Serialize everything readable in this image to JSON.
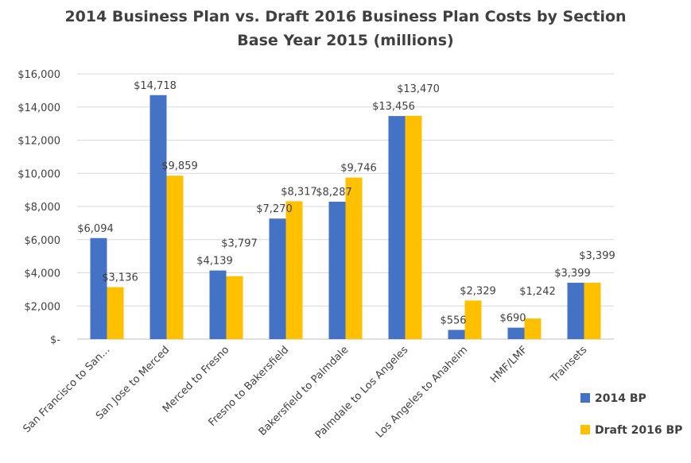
{
  "chart_data": {
    "type": "bar",
    "title": "2014 Business Plan vs. Draft 2016 Business Plan Costs by Section",
    "subtitle": "Base Year 2015 (millions)",
    "xlabel": "",
    "ylabel": "",
    "ylim": [
      0,
      16000
    ],
    "yticks": [
      0,
      2000,
      4000,
      6000,
      8000,
      10000,
      12000,
      14000,
      16000
    ],
    "ytick_labels": [
      "$-",
      "$2,000",
      "$4,000",
      "$6,000",
      "$8,000",
      "$10,000",
      "$12,000",
      "$14,000",
      "$16,000"
    ],
    "grid": true,
    "legend_position": "bottom-right",
    "categories": [
      "San Francisco to San...",
      "San Jose to Merced",
      "Merced to Fresno",
      "Fresno to Bakersfield",
      "Bakersfield to Palmdale",
      "Palmdale to Los Angeles",
      "Los Angeles to Anaheim",
      "HMF/LMF",
      "Trainsets"
    ],
    "series": [
      {
        "name": "2014 BP",
        "color": "#4472C4",
        "values": [
          6094,
          14718,
          4139,
          7270,
          8287,
          13456,
          556,
          690,
          3399
        ],
        "labels": [
          "$6,094",
          "$14,718",
          "$4,139",
          "$7,270",
          "$8,287",
          "$13,456",
          "$556",
          "$690",
          "$3,399"
        ]
      },
      {
        "name": "Draft 2016 BP",
        "color": "#FFC000",
        "values": [
          3136,
          9859,
          3797,
          8317,
          9746,
          13470,
          2329,
          1242,
          3399
        ],
        "labels": [
          "$3,136",
          "$9,859",
          "$3,797",
          "$8,317",
          "$9,746",
          "$13,470",
          "$2,329",
          "$1,242",
          "$3,399"
        ]
      }
    ]
  }
}
